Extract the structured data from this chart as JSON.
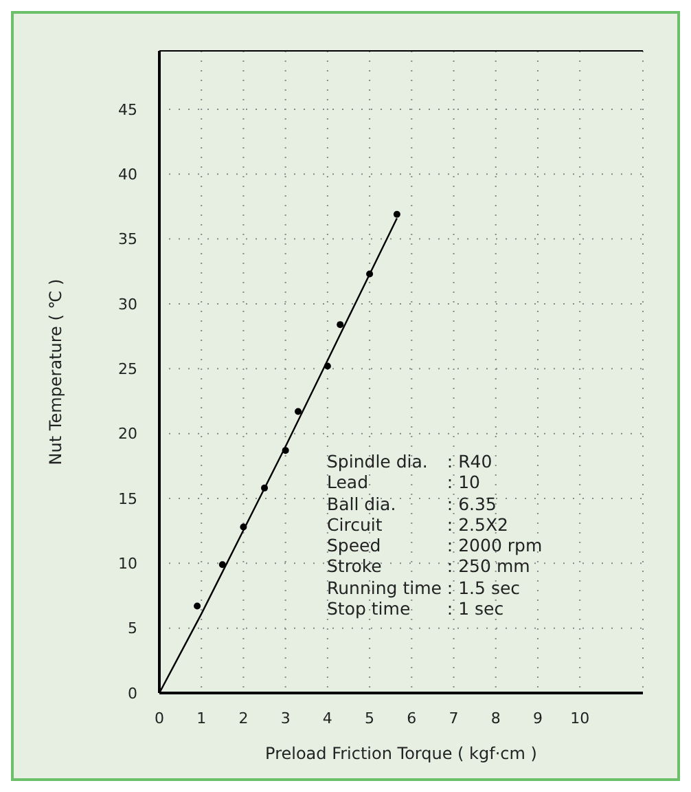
{
  "chart_data": {
    "type": "scatter",
    "xlabel": "Preload Friction Torque ( kgf·cm )",
    "ylabel": "Nut Temperature ( ℃ )",
    "series": [
      {
        "marker": "circle",
        "color": "#000000",
        "x": [
          0.9,
          1.5,
          2,
          2.5,
          3,
          3.3,
          4,
          4.3,
          5,
          5.65
        ],
        "values": [
          6.7,
          9.9,
          12.8,
          15.8,
          18.7,
          21.7,
          25.2,
          28.4,
          32.3,
          36.9
        ]
      },
      {
        "type": "line",
        "marker": "none",
        "color": "#000000",
        "x": [
          0,
          1,
          3,
          5.65
        ],
        "values": [
          0,
          6.1,
          19,
          36.6
        ]
      }
    ],
    "xlim": [
      0,
      11.5
    ],
    "xticks": [
      0,
      1,
      2,
      3,
      4,
      5,
      6,
      7,
      8,
      9,
      10
    ],
    "ylim": [
      0,
      49.5
    ],
    "yticks": [
      0,
      5,
      10,
      15,
      20,
      25,
      30,
      35,
      40,
      45
    ],
    "grid": true,
    "legend": false,
    "annotations": [
      "Spindle dia.\t: R40",
      "Lead\t: 10",
      "Ball dia.\t: 6.35",
      "Circuit\t: 2.5X2",
      "Speed\t: 2000 rpm",
      "Stroke\t: 250 mm",
      "Running time\t: 1.5 sec",
      "Stop time\t: 1 sec"
    ]
  }
}
